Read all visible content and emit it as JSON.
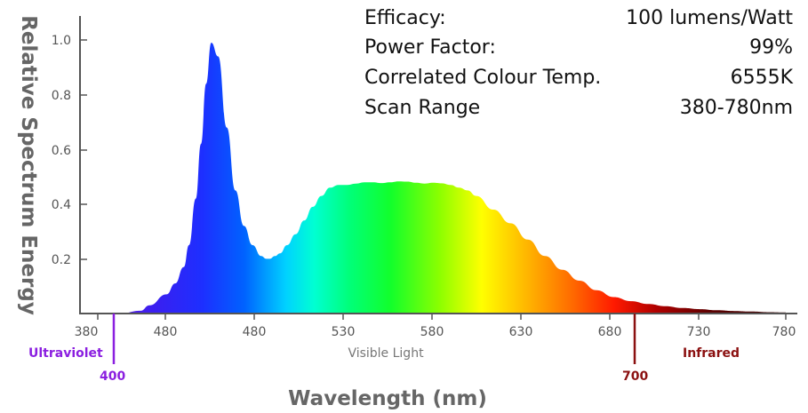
{
  "chart_data": {
    "type": "area",
    "ylabel": "Relative Spectrum Energy",
    "xlabel": "Wavelength (nm)",
    "y_ticks": [
      "1.0",
      "0.8",
      "0.6",
      "0.4",
      "0.2"
    ],
    "y_tick_values": [
      1.0,
      0.8,
      0.6,
      0.4,
      0.2
    ],
    "x_tick_labels": [
      "380",
      "480",
      "480",
      "530",
      "580",
      "630",
      "680",
      "730",
      "780"
    ],
    "xlim": [
      380,
      780
    ],
    "ylim": [
      0,
      1.0
    ],
    "grid": false,
    "x": [
      393,
      405,
      410,
      420,
      425,
      430,
      433,
      437,
      440,
      443,
      446,
      450,
      455,
      460,
      465,
      470,
      475,
      478,
      480,
      483,
      486,
      490,
      495,
      500,
      505,
      510,
      515,
      520,
      525,
      530,
      535,
      540,
      545,
      550,
      555,
      560,
      565,
      570,
      575,
      580,
      585,
      590,
      595,
      600,
      610,
      620,
      630,
      640,
      650,
      660,
      670,
      680,
      690,
      700,
      710,
      720,
      730,
      740,
      750,
      760,
      770,
      780
    ],
    "y": [
      0.0,
      0.01,
      0.03,
      0.07,
      0.11,
      0.17,
      0.25,
      0.42,
      0.62,
      0.84,
      0.99,
      0.94,
      0.68,
      0.45,
      0.32,
      0.25,
      0.21,
      0.2,
      0.2,
      0.21,
      0.22,
      0.25,
      0.29,
      0.34,
      0.39,
      0.43,
      0.46,
      0.47,
      0.47,
      0.475,
      0.48,
      0.48,
      0.477,
      0.48,
      0.483,
      0.482,
      0.478,
      0.475,
      0.478,
      0.476,
      0.47,
      0.46,
      0.45,
      0.43,
      0.38,
      0.33,
      0.27,
      0.21,
      0.16,
      0.12,
      0.085,
      0.06,
      0.045,
      0.035,
      0.027,
      0.02,
      0.016,
      0.012,
      0.009,
      0.007,
      0.005,
      0.004
    ],
    "regions": {
      "ultraviolet": {
        "label": "Ultraviolet",
        "marker_value": "400",
        "color": "#8B1FE0"
      },
      "visible": {
        "label": "Visible Light",
        "color": "#777777"
      },
      "infrared": {
        "label": "Infrared",
        "marker_value": "700",
        "color": "#8B1010"
      }
    }
  },
  "specs": [
    {
      "label": "Efficacy:",
      "value": "100 lumens/Watt"
    },
    {
      "label": "Power Factor:",
      "value": "99%"
    },
    {
      "label": "Correlated Colour Temp.",
      "value": "6555K"
    },
    {
      "label": "Scan Range",
      "value": "380-780nm"
    }
  ]
}
